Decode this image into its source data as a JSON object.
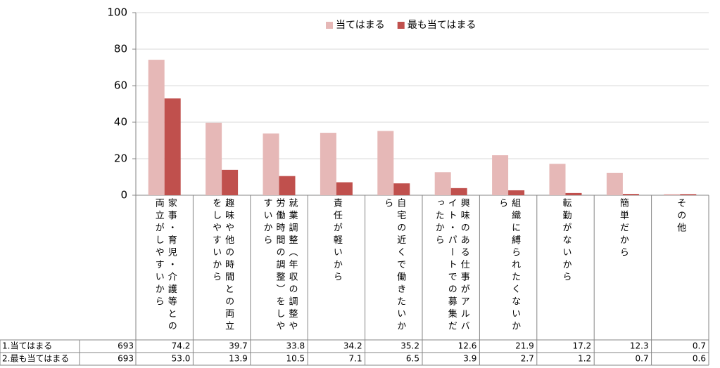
{
  "chart_data": {
    "type": "bar",
    "categories": [
      "家事・育児・介護等との両立がしやすいから",
      "趣味や他の時間との両立をしやすいから",
      "就業調整（年収の調整や労働時間の調整）をしやすいから",
      "責任が軽いから",
      "自宅の近くで働きたいから",
      "興味のある仕事がアルバイト・パートでの募集だったから",
      "組織に縛られたくないから",
      "転勤がないから",
      "簡単だから",
      "その他"
    ],
    "series": [
      {
        "name": "当てはまる",
        "table_label": "1.当てはまる",
        "n": 693,
        "color": "#e6b8b7",
        "values": [
          74.2,
          39.7,
          33.8,
          34.2,
          35.2,
          12.6,
          21.9,
          17.2,
          12.3,
          0.7
        ],
        "value_labels": [
          "74.2",
          "39.7",
          "33.8",
          "34.2",
          "35.2",
          "12.6",
          "21.9",
          "17.2",
          "12.3",
          "0.7"
        ]
      },
      {
        "name": "最も当てはまる",
        "table_label": "2.最も当てはまる",
        "n": 693,
        "color": "#c0504d",
        "values": [
          53.0,
          13.9,
          10.5,
          7.1,
          6.5,
          3.9,
          2.7,
          1.2,
          0.7,
          0.6
        ],
        "value_labels": [
          "53.0",
          "13.9",
          "10.5",
          "7.1",
          "6.5",
          "3.9",
          "2.7",
          "1.2",
          "0.7",
          "0.6"
        ]
      }
    ],
    "ylim": [
      0,
      100
    ],
    "yticks": [
      0,
      20,
      40,
      60,
      80,
      100
    ],
    "grid": true,
    "legend": "top",
    "data_table": true
  }
}
